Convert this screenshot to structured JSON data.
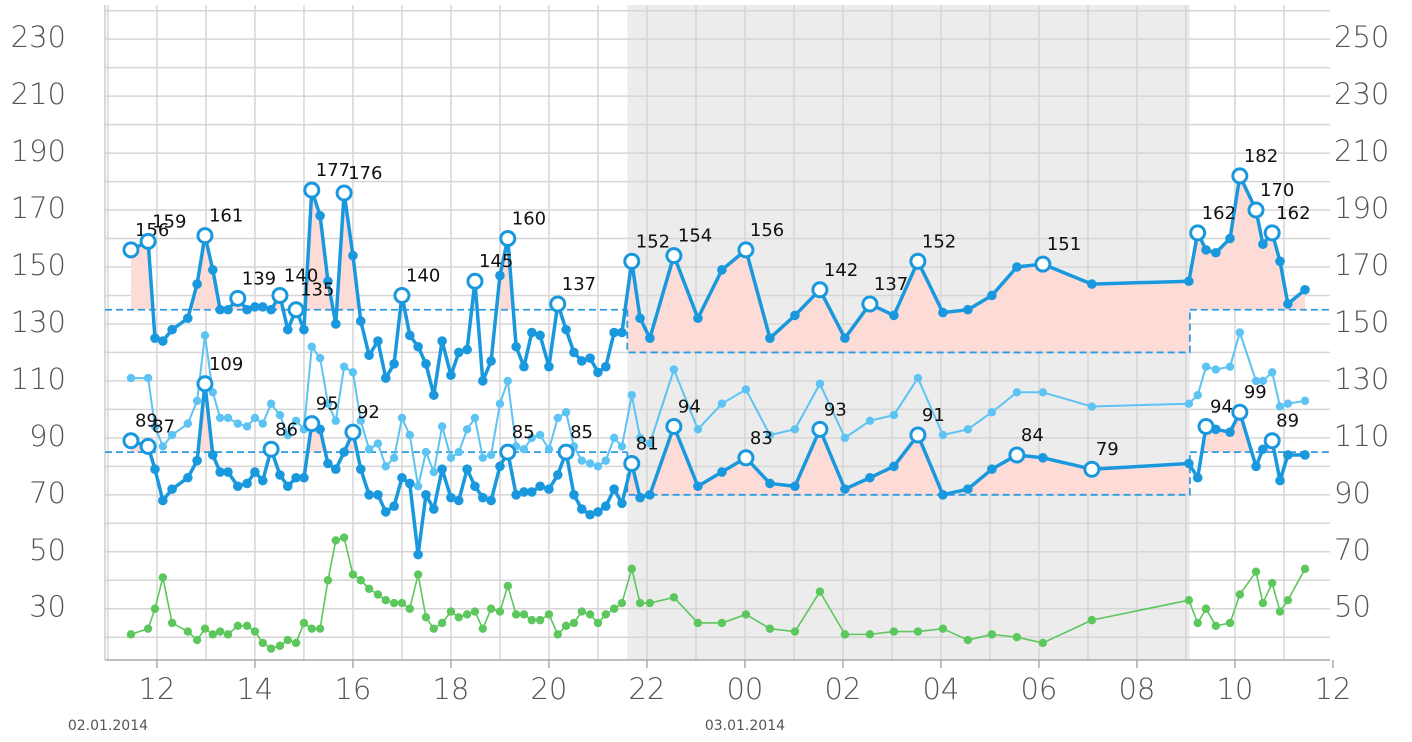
{
  "chart_data": {
    "type": "line",
    "x": [
      11.47,
      11.82,
      11.96,
      12.12,
      12.31,
      12.63,
      12.82,
      12.98,
      13.14,
      13.29,
      13.45,
      13.65,
      13.84,
      14.0,
      14.16,
      14.33,
      14.51,
      14.67,
      14.84,
      15.0,
      15.16,
      15.33,
      15.49,
      15.65,
      15.82,
      16.0,
      16.16,
      16.33,
      16.51,
      16.67,
      16.84,
      17.0,
      17.16,
      17.33,
      17.49,
      17.65,
      17.82,
      18.0,
      18.16,
      18.33,
      18.49,
      18.65,
      18.82,
      19.0,
      19.16,
      19.33,
      19.49,
      19.65,
      19.82,
      20.0,
      20.18,
      20.35,
      20.51,
      20.67,
      20.84,
      21.0,
      21.16,
      21.33,
      21.49,
      21.69,
      21.86,
      22.06,
      22.55,
      23.04,
      23.53,
      24.02,
      24.51,
      25.02,
      25.53,
      26.04,
      26.55,
      27.04,
      27.53,
      28.04,
      28.55,
      29.04,
      29.55,
      30.08,
      31.08,
      33.06,
      33.24,
      33.41,
      33.61,
      33.9,
      34.1,
      34.43,
      34.57,
      34.76,
      34.92,
      35.08,
      35.43
    ],
    "xlim": [
      10.94,
      35.94
    ],
    "xticks": [
      12,
      14,
      16,
      18,
      20,
      22,
      {
        "value": 24,
        "label": "00"
      },
      {
        "value": 26,
        "label": "02"
      },
      {
        "value": 28,
        "label": "04"
      },
      {
        "value": 30,
        "label": "06"
      },
      {
        "value": 32,
        "label": "08"
      },
      {
        "value": 34,
        "label": "10"
      },
      {
        "value": 36,
        "label": "12"
      }
    ],
    "xminorticks": [
      11,
      13,
      15,
      17,
      19,
      21,
      23,
      25,
      27,
      29,
      31,
      33,
      35
    ],
    "date_labels": [
      {
        "value": 11,
        "label": "02.01.2014"
      },
      {
        "value": 24,
        "label": "03.01.2014"
      }
    ],
    "ylim": [
      12,
      242
    ],
    "yticks": [
      30,
      50,
      70,
      90,
      110,
      130,
      150,
      170,
      190,
      210,
      230
    ],
    "yminorticks": [
      20,
      40,
      60,
      80,
      100,
      120,
      140,
      160,
      180,
      200,
      220,
      240
    ],
    "y2lim": [
      32,
      262
    ],
    "y2ticks": [
      50,
      70,
      90,
      110,
      130,
      150,
      170,
      190,
      210,
      230,
      250
    ],
    "grid": true,
    "night": [
      21.6,
      33.08
    ],
    "night_color": "#ececec",
    "series": [
      {
        "color": "#1a98de",
        "width": 3.5,
        "fill": "#fddcd8",
        "threshold": {
          "day": 135,
          "night": 120
        },
        "values": [
          156,
          159,
          125,
          124,
          128,
          132,
          144,
          161,
          149,
          135,
          135,
          139,
          135,
          136,
          136,
          135,
          140,
          128,
          135,
          128,
          177,
          168,
          145,
          130,
          176,
          154,
          131,
          119,
          124,
          111,
          116,
          140,
          126,
          122,
          116,
          105,
          124,
          112,
          120,
          121,
          145,
          110,
          117,
          147,
          160,
          122,
          115,
          127,
          126,
          115,
          137,
          128,
          120,
          117,
          118,
          113,
          115,
          127,
          127,
          152,
          132,
          125,
          154,
          132,
          149,
          156,
          125,
          133,
          142,
          125,
          137,
          133,
          152,
          134,
          135,
          140,
          150,
          151,
          144,
          145,
          162,
          156,
          155,
          160,
          182,
          170,
          158,
          162,
          152,
          137,
          142
        ],
        "markers": [
          0,
          1,
          7,
          11,
          16,
          18,
          20,
          24,
          31,
          40,
          44,
          50,
          59,
          62,
          65,
          68,
          70,
          72,
          77,
          80,
          84,
          85,
          87
        ]
      },
      {
        "color": "#1a98de",
        "width": 3.5,
        "fill": "#fddcd8",
        "threshold": {
          "day": 85,
          "night": 70
        },
        "values": [
          89,
          87,
          79,
          68,
          72,
          76,
          82,
          109,
          84,
          78,
          78,
          73,
          74,
          78,
          75,
          86,
          77,
          73,
          76,
          76,
          95,
          93,
          81,
          79,
          85,
          92,
          79,
          70,
          70,
          64,
          66,
          76,
          74,
          49,
          70,
          65,
          79,
          69,
          68,
          79,
          73,
          69,
          68,
          80,
          85,
          70,
          71,
          71,
          73,
          72,
          77,
          85,
          70,
          65,
          63,
          64,
          66,
          72,
          67,
          81,
          69,
          70,
          94,
          73,
          78,
          83,
          74,
          73,
          93,
          72,
          76,
          80,
          91,
          70,
          72,
          79,
          84,
          83,
          79,
          81,
          76,
          94,
          93,
          92,
          99,
          80,
          86,
          89,
          75,
          84,
          84
        ],
        "markers": [
          0,
          1,
          7,
          15,
          20,
          25,
          44,
          51,
          59,
          62,
          65,
          68,
          72,
          76,
          78,
          81,
          84,
          87
        ]
      },
      {
        "color": "#5cc3f3",
        "width": 2,
        "values": [
          111,
          111,
          94,
          87,
          91,
          95,
          103,
          126,
          106,
          97,
          97,
          95,
          94,
          97,
          95,
          102,
          98,
          91,
          96,
          93,
          122,
          118,
          102,
          96,
          115,
          113,
          96,
          86,
          88,
          80,
          83,
          97,
          91,
          73,
          85,
          78,
          94,
          83,
          85,
          93,
          97,
          83,
          84,
          102,
          110,
          87,
          86,
          90,
          91,
          86,
          97,
          99,
          87,
          82,
          81,
          80,
          82,
          90,
          87,
          105,
          90,
          88,
          114,
          93,
          102,
          107,
          91,
          93,
          109,
          90,
          96,
          98,
          111,
          91,
          93,
          99,
          106,
          106,
          101,
          102,
          105,
          115,
          114,
          115,
          127,
          110,
          110,
          113,
          101,
          102,
          103
        ]
      },
      {
        "color": "#5cc75c",
        "width": 1.6,
        "values": [
          21,
          23,
          30,
          41,
          25,
          22,
          19,
          23,
          21,
          22,
          21,
          24,
          24,
          22,
          18,
          16,
          17,
          19,
          18,
          25,
          23,
          23,
          40,
          54,
          55,
          42,
          40,
          37,
          35,
          33,
          32,
          32,
          30,
          42,
          27,
          23,
          25,
          29,
          27,
          28,
          29,
          23,
          30,
          29,
          38,
          28,
          28,
          26,
          26,
          28,
          21,
          24,
          25,
          29,
          28,
          25,
          28,
          30,
          32,
          44,
          32,
          32,
          34,
          25,
          25,
          28,
          23,
          22,
          36,
          21,
          21,
          22,
          22,
          23,
          19,
          21,
          20,
          18,
          26,
          33,
          25,
          30,
          24,
          25,
          35,
          43,
          32,
          39,
          29,
          33,
          44
        ]
      }
    ]
  }
}
